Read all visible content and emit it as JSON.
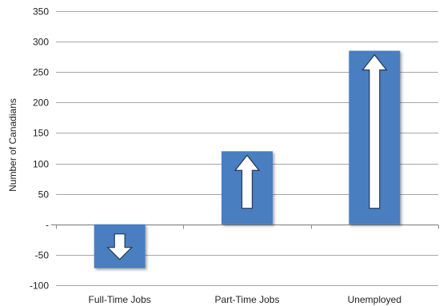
{
  "chart_data": {
    "type": "bar",
    "categories": [
      "Full-Time Jobs",
      "Part-Time Jobs",
      "Unemployed"
    ],
    "values": [
      -72,
      120,
      285
    ],
    "ylabel": "Number of Canadians",
    "xlabel": "",
    "ylim": [
      -100,
      350
    ],
    "yticks": [
      {
        "value": 350,
        "label": "350"
      },
      {
        "value": 300,
        "label": "300"
      },
      {
        "value": 250,
        "label": "250"
      },
      {
        "value": 200,
        "label": "200"
      },
      {
        "value": 150,
        "label": "150"
      },
      {
        "value": 100,
        "label": "100"
      },
      {
        "value": 50,
        "label": "50"
      },
      {
        "value": 0,
        "label": "-"
      },
      {
        "value": -50,
        "label": "-50"
      },
      {
        "value": -100,
        "label": "-100"
      }
    ],
    "grid": true,
    "bar_color": "#4A7EC0",
    "arrow_direction": [
      "down",
      "up",
      "up"
    ]
  }
}
